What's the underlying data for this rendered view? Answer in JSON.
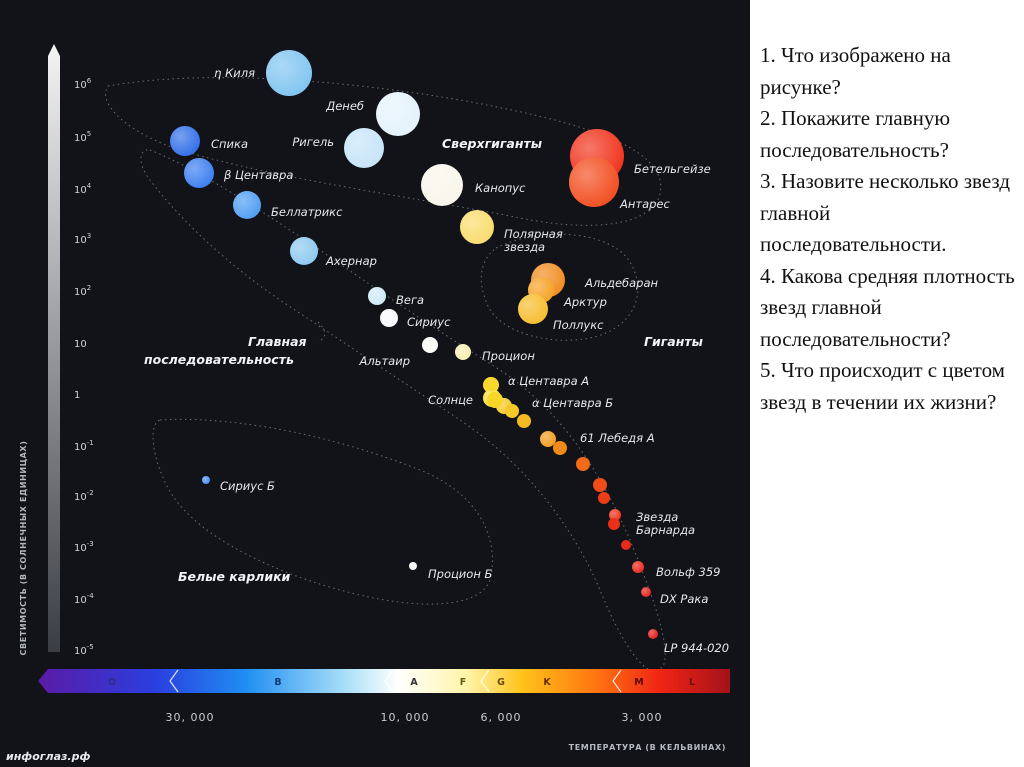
{
  "diagram": {
    "source": "инфоглаз.рф",
    "y_axis_title": "СВЕТИМОСТЬ (В СОЛНЕЧНЫХ ЕДИНИЦАХ)",
    "x_axis_title": "ТЕМПЕРАТУРА (В КЕЛЬВИНАХ)",
    "luminosity_ticks": [
      {
        "base": "10",
        "exp": "6",
        "value": 6
      },
      {
        "base": "10",
        "exp": "5",
        "value": 5
      },
      {
        "base": "10",
        "exp": "4",
        "value": 4
      },
      {
        "base": "10",
        "exp": "3",
        "value": 3
      },
      {
        "base": "10",
        "exp": "2",
        "value": 2
      },
      {
        "base": "10",
        "exp": "",
        "value": 1
      },
      {
        "base": "1",
        "exp": "",
        "value": 0
      },
      {
        "base": "10",
        "exp": "-1",
        "value": -1
      },
      {
        "base": "10",
        "exp": "-2",
        "value": -2
      },
      {
        "base": "10",
        "exp": "-3",
        "value": -3
      },
      {
        "base": "10",
        "exp": "-4",
        "value": -4
      },
      {
        "base": "10",
        "exp": "-5",
        "value": -5
      },
      {
        "base": "10",
        "exp": "-6",
        "value": -6
      }
    ],
    "temperature_ticks": [
      "30, 000",
      "10, 000",
      "6, 000",
      "3, 000"
    ],
    "spectral_classes": [
      "O",
      "B",
      "A",
      "F",
      "G",
      "K",
      "M",
      "L"
    ],
    "regions": {
      "supergiants": "Сверхгиганты",
      "giants": "Гиганты",
      "main_sequence": "Главная\nпоследовательность",
      "white_dwarfs": "Белые карлики"
    },
    "stars": [
      {
        "name": "η Киля",
        "color": "#7fc4f0"
      },
      {
        "name": "Денеб",
        "color": "#e4f2fc"
      },
      {
        "name": "Ригель",
        "color": "#c6e4f8"
      },
      {
        "name": "Спика",
        "color": "#2f6de8"
      },
      {
        "name": "β Центавра",
        "color": "#3a7cf0"
      },
      {
        "name": "Беллатрикс",
        "color": "#4d9cf2"
      },
      {
        "name": "Ахернар",
        "color": "#8cc8f0"
      },
      {
        "name": "Вега",
        "color": "#cfe9f8"
      },
      {
        "name": "Сириус",
        "color": "#f6f8fa"
      },
      {
        "name": "Альтаир",
        "color": "#fbfbf4"
      },
      {
        "name": "Процион",
        "color": "#f6edb0"
      },
      {
        "name": "Канопус",
        "color": "#f8f6ea"
      },
      {
        "name": "Полярная\nзвезда",
        "color": "#f8dc6a"
      },
      {
        "name": "Бетельгейзе",
        "color": "#f03018"
      },
      {
        "name": "Антарес",
        "color": "#f24a1c"
      },
      {
        "name": "Альдебаран",
        "color": "#f08a1c"
      },
      {
        "name": "Арктур",
        "color": "#f5a020"
      },
      {
        "name": "Поллукс",
        "color": "#f6bc2a"
      },
      {
        "name": "α Центавра А",
        "color": "#f8d82c"
      },
      {
        "name": "Солнце",
        "color": "#f8e030"
      },
      {
        "name": "α Центавра Б",
        "color": "#f6c828"
      },
      {
        "name": "61 Лебедя А",
        "color": "#f29a1c"
      },
      {
        "name": "Звезда\nБарнарда",
        "color": "#ee3018"
      },
      {
        "name": "Вольф 359",
        "color": "#e8241a"
      },
      {
        "name": "DX Рака",
        "color": "#e42018"
      },
      {
        "name": "LP 944-020",
        "color": "#de1c18"
      },
      {
        "name": "Сириус Б",
        "color": "#4a8ef0"
      },
      {
        "name": "Процион Б",
        "color": "#f4f4f4"
      }
    ]
  },
  "questions": [
    "1. Что изображено на рисунке?",
    "2. Покажите главную последовательность?",
    "3. Назовите несколько звезд главной последовательности.",
    "4. Какова средняя плотность звезд главной последовательности?",
    "5. Что происходит с цветом звезд в течении их жизни?"
  ]
}
